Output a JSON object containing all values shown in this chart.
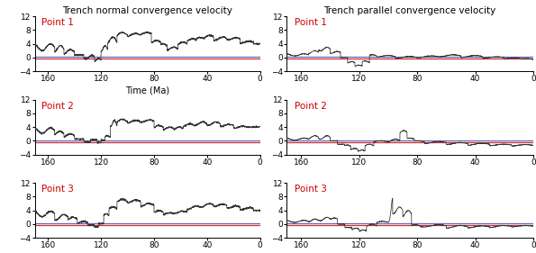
{
  "title_left": "Trench normal convergence velocity",
  "title_right": "Trench parallel convergence velocity",
  "xlabel": "Time (Ma)",
  "xlim": [
    170,
    0
  ],
  "ylim": [
    -4,
    12
  ],
  "yticks": [
    -4,
    0,
    4,
    8,
    12
  ],
  "xticks": [
    160,
    120,
    80,
    40,
    0
  ],
  "point_labels": [
    "Point 1",
    "Point 2",
    "Point 3"
  ],
  "label_color": "#cc0000",
  "line_color": "#333333",
  "hline_blue": "#6666bb",
  "hline_red": "#cc3333",
  "hline_blue_y": 0.2,
  "hline_red_y": -0.4,
  "title_fontsize": 7.5,
  "label_fontsize": 7.5,
  "tick_fontsize": 6.5,
  "bg_color": "#ffffff"
}
